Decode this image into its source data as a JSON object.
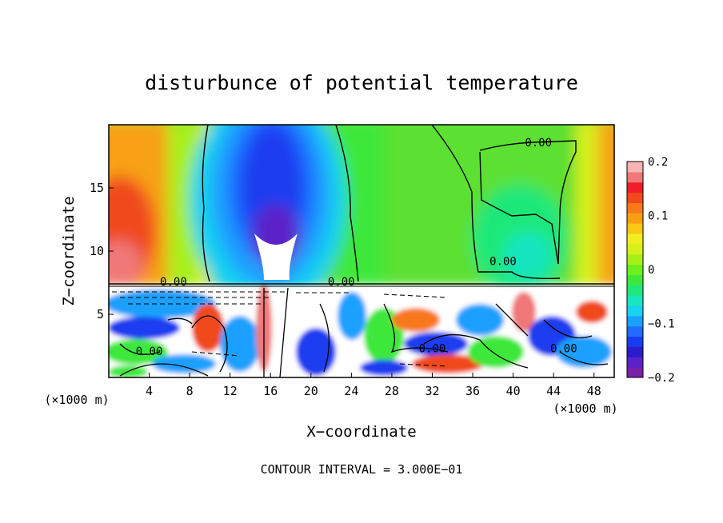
{
  "chart_data": {
    "type": "heatmap",
    "title": "disturbunce of potential temperature",
    "xlabel": "X−coordinate",
    "ylabel": "Z−coordinate",
    "x_unit": "(×1000 m)",
    "x_unit_right": "(×1000 m)",
    "xlim": [
      0,
      50
    ],
    "ylim": [
      0,
      20
    ],
    "xticks": [
      4,
      8,
      12,
      16,
      20,
      24,
      28,
      32,
      36,
      40,
      44,
      48
    ],
    "yticks": [
      5,
      10,
      15
    ],
    "footer": "CONTOUR INTERVAL = 3.000E−01",
    "contour_labels": [
      {
        "text": "0.00",
        "x": 42.5,
        "z": 18.6
      },
      {
        "text": "0.00",
        "x": 39.0,
        "z": 9.2
      },
      {
        "text": "0.00",
        "x": 6.4,
        "z": 7.6
      },
      {
        "text": "0.00",
        "x": 23.0,
        "z": 7.6
      },
      {
        "text": "0.00",
        "x": 4.0,
        "z": 2.1
      },
      {
        "text": "0.00",
        "x": 32.0,
        "z": 2.3
      },
      {
        "text": "0.00",
        "x": 45.0,
        "z": 2.3
      }
    ],
    "colorbar": {
      "min": -0.2,
      "max": 0.2,
      "tick_labels": [
        "0.2",
        "0.1",
        "0",
        "−0.1",
        "−0.2"
      ],
      "tick_values": [
        0.2,
        0.1,
        0,
        -0.1,
        -0.2
      ],
      "colors": [
        "#7a1fa8",
        "#5b22c8",
        "#2a1cc8",
        "#1a3cf0",
        "#1f6cff",
        "#1aa0ff",
        "#17d2f0",
        "#18e6c0",
        "#1ee87a",
        "#3ee83a",
        "#6cf01e",
        "#a6f01a",
        "#d8f01a",
        "#f0ee20",
        "#f8c814",
        "#f8a014",
        "#f8781a",
        "#f04a1a",
        "#f01e28",
        "#f07878",
        "#f8b4b4"
      ]
    }
  }
}
